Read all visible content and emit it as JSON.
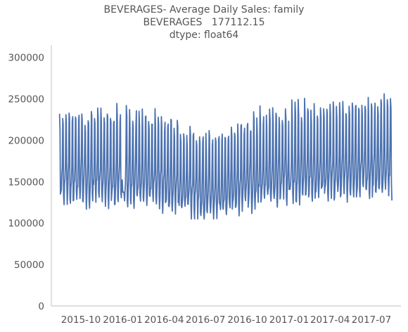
{
  "chart_data": {
    "type": "line",
    "title_lines": [
      "BEVERAGES- Average Daily Sales: family",
      "BEVERAGES   177112.15",
      "dtype: float64"
    ],
    "xlabel": "",
    "ylabel": "",
    "x_start": "2015-08-15",
    "x_end": "2017-08-15",
    "xlim": [
      "2015-07-28",
      "2017-09-04"
    ],
    "ylim": [
      0,
      315000
    ],
    "y_ticks": [
      0,
      50000,
      100000,
      150000,
      200000,
      250000,
      300000
    ],
    "y_tick_labels": [
      "0",
      "50000",
      "100000",
      "150000",
      "200000",
      "250000",
      "300000"
    ],
    "x_ticks": [
      "2015-10-01",
      "2016-01-01",
      "2016-04-01",
      "2016-07-01",
      "2016-10-01",
      "2017-01-01",
      "2017-04-01",
      "2017-07-01"
    ],
    "x_tick_labels": [
      "2015-10",
      "2016-01",
      "2016-04",
      "2016-07",
      "2016-10",
      "2017-01",
      "2017-04",
      "2017-07"
    ],
    "grid": false,
    "series": [
      {
        "color": "#4c72b0"
      }
    ]
  }
}
